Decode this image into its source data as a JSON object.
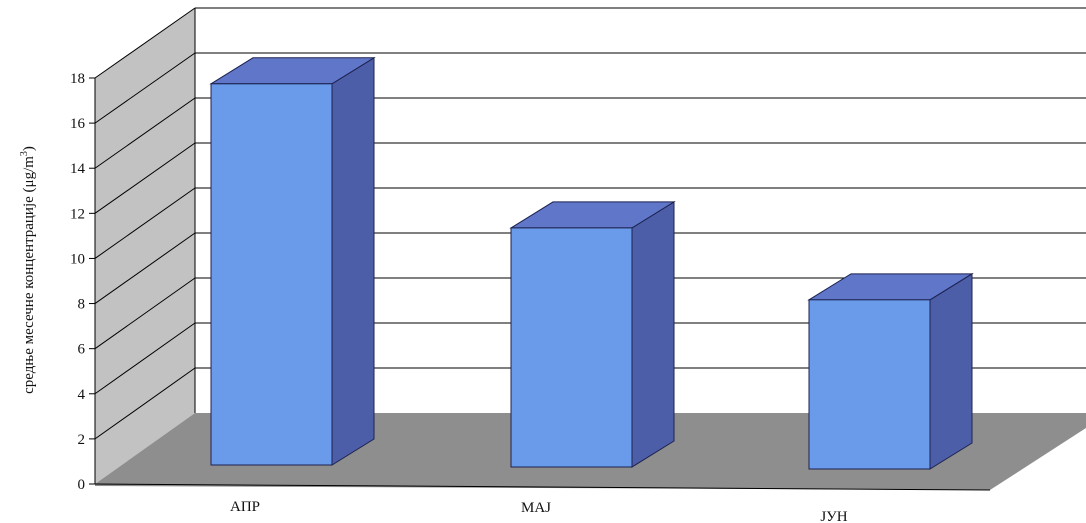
{
  "chart_data": {
    "type": "bar",
    "style": "3d-column",
    "categories": [
      "АПР",
      "МАЈ",
      "ЈУН"
    ],
    "values": [
      16.9,
      10.6,
      7.5
    ],
    "ylabel": "средње месечне концентрације (μg/m³)",
    "ylabel_main": "средње месечне концентрације (μg/m",
    "ylabel_sup": "3",
    "ylabel_close": ")",
    "ylim": [
      0,
      18
    ],
    "yticks": [
      "0",
      "2",
      "4",
      "6",
      "8",
      "10",
      "12",
      "14",
      "16",
      "18"
    ],
    "grid": true,
    "legend": "none",
    "colors": {
      "bar_front": "#6a9bea",
      "bar_side": "#4d5ea8",
      "bar_top": "#5f76c9",
      "wall_left": "#c2c2c2",
      "floor": "#8e8e8e",
      "back_wall": "#ffffff",
      "grid": "#000000"
    }
  }
}
